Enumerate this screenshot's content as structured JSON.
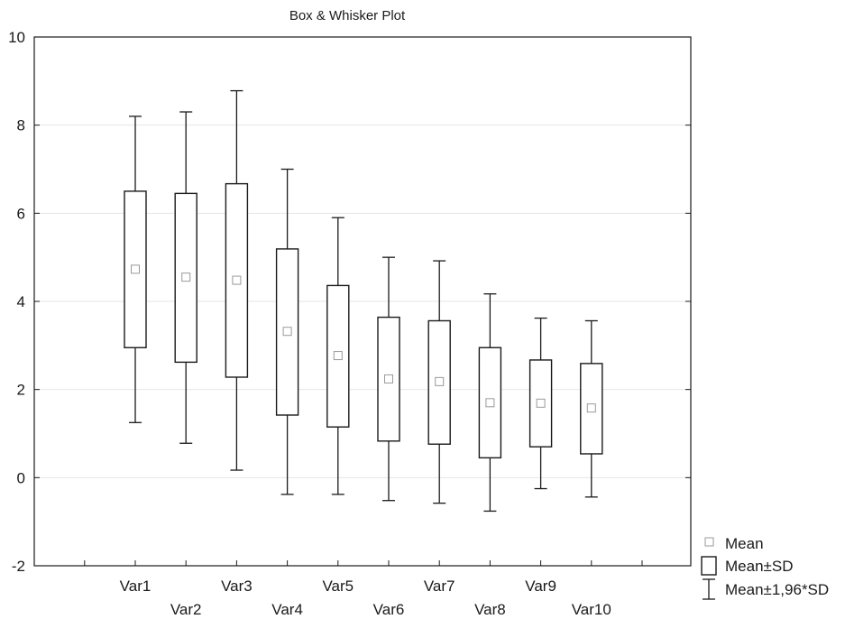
{
  "chart_data": {
    "type": "box",
    "title": "Box & Whisker Plot",
    "xlabel": "",
    "ylabel": "",
    "ylim": [
      -2,
      10
    ],
    "yticks": [
      "-2",
      "0",
      "2",
      "4",
      "6",
      "8",
      "10"
    ],
    "grid": true,
    "categories": [
      "Var1",
      "Var2",
      "Var3",
      "Var4",
      "Var5",
      "Var6",
      "Var7",
      "Var8",
      "Var9",
      "Var10"
    ],
    "series": [
      {
        "category": "Var1",
        "mean": 4.73,
        "box_low": 2.95,
        "box_high": 6.5,
        "whisker_low": 1.25,
        "whisker_high": 8.2
      },
      {
        "category": "Var2",
        "mean": 4.55,
        "box_low": 2.62,
        "box_high": 6.45,
        "whisker_low": 0.78,
        "whisker_high": 8.3
      },
      {
        "category": "Var3",
        "mean": 4.48,
        "box_low": 2.28,
        "box_high": 6.67,
        "whisker_low": 0.17,
        "whisker_high": 8.78
      },
      {
        "category": "Var4",
        "mean": 3.32,
        "box_low": 1.42,
        "box_high": 5.19,
        "whisker_low": -0.38,
        "whisker_high": 7.0
      },
      {
        "category": "Var5",
        "mean": 2.77,
        "box_low": 1.15,
        "box_high": 4.36,
        "whisker_low": -0.38,
        "whisker_high": 5.9
      },
      {
        "category": "Var6",
        "mean": 2.24,
        "box_low": 0.83,
        "box_high": 3.64,
        "whisker_low": -0.52,
        "whisker_high": 5.0
      },
      {
        "category": "Var7",
        "mean": 2.18,
        "box_low": 0.76,
        "box_high": 3.56,
        "whisker_low": -0.58,
        "whisker_high": 4.92
      },
      {
        "category": "Var8",
        "mean": 1.7,
        "box_low": 0.45,
        "box_high": 2.95,
        "whisker_low": -0.76,
        "whisker_high": 4.17
      },
      {
        "category": "Var9",
        "mean": 1.69,
        "box_low": 0.7,
        "box_high": 2.67,
        "whisker_low": -0.25,
        "whisker_high": 3.62
      },
      {
        "category": "Var10",
        "mean": 1.58,
        "box_low": 0.54,
        "box_high": 2.59,
        "whisker_low": -0.44,
        "whisker_high": 3.56
      }
    ],
    "legend": {
      "placement": "bottom-right",
      "entries": [
        {
          "label": "Mean",
          "marker": "square"
        },
        {
          "label": "Mean±SD",
          "marker": "box"
        },
        {
          "label": "Mean±1,96*SD",
          "marker": "whisker"
        }
      ]
    },
    "colors": {
      "line": "#1a1a1a",
      "mean_marker": "#9a9a9a",
      "grid": "#e6e6e6"
    }
  }
}
